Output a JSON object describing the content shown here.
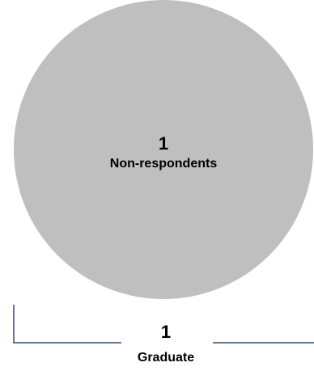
{
  "non_respondents": {
    "count": "1",
    "label": "Non-respondents",
    "fill_color": "#bfbfbf"
  },
  "graduate": {
    "count": "1",
    "label": "Graduate",
    "bracket_color": "#2d4a7a"
  }
}
